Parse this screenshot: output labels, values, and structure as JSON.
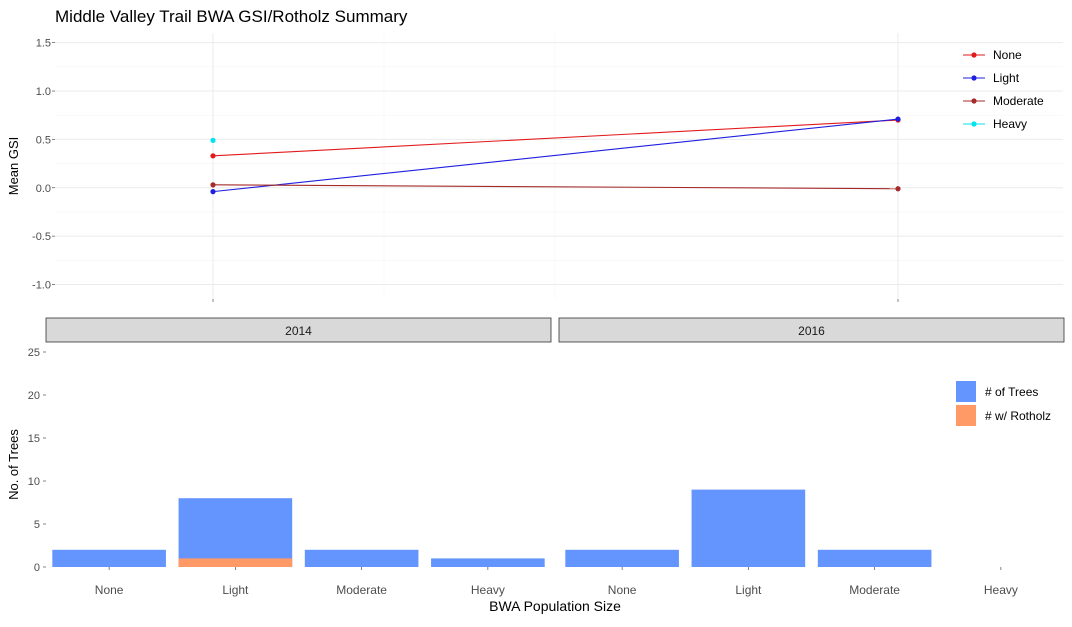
{
  "chart_data": [
    {
      "type": "line",
      "title": "Middle Valley Trail BWA GSI/Rotholz Summary",
      "xlabel": "",
      "ylabel": "Mean GSI",
      "x": [
        "2014",
        "2016"
      ],
      "ylim": [
        -1.15,
        1.6
      ],
      "yticks": [
        "-1.0",
        "-0.5",
        "0.0",
        "0.5",
        "1.0",
        "1.5"
      ],
      "grid": true,
      "legend_position": "right",
      "series": [
        {
          "name": "None",
          "color": "#e31a1c",
          "values": [
            0.33,
            0.7
          ]
        },
        {
          "name": "Light",
          "color": "#1f1fe0",
          "values": [
            -0.04,
            0.71
          ]
        },
        {
          "name": "Moderate",
          "color": "#a52a2a",
          "values": [
            0.03,
            -0.01
          ]
        },
        {
          "name": "Heavy",
          "color": "#00e5ee",
          "values": [
            0.49,
            null
          ]
        }
      ]
    },
    {
      "type": "bar",
      "facets": [
        "2014",
        "2016"
      ],
      "categories": [
        "None",
        "Light",
        "Moderate",
        "Heavy"
      ],
      "xlabel": "BWA Population Size",
      "ylabel": "No. of Trees",
      "ylim": [
        0,
        25
      ],
      "yticks": [
        "0",
        "5",
        "10",
        "15",
        "20",
        "25"
      ],
      "legend_position": "right",
      "series": [
        {
          "name": "# of Trees",
          "color": "#6495ff",
          "values": [
            [
              2,
              8,
              2,
              1
            ],
            [
              2,
              9,
              2,
              0
            ]
          ]
        },
        {
          "name": "# w/ Rotholz",
          "color": "#ff9966",
          "values": [
            [
              0,
              1,
              0,
              0
            ],
            [
              0,
              0,
              0,
              0
            ]
          ]
        }
      ]
    }
  ]
}
